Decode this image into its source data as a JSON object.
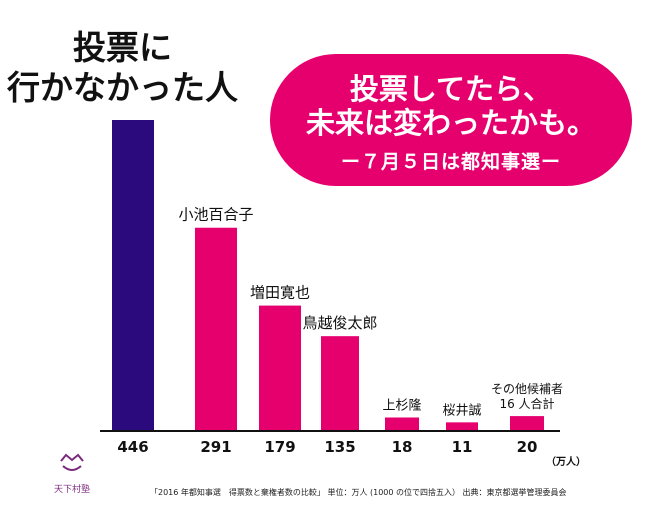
{
  "title_nonvoters": [
    "投票に",
    "行かなかった人"
  ],
  "callout": {
    "line1": "投票してたら、",
    "line2": "未来は変わったかも。",
    "line3": "ー７月５日は都知事選ー",
    "bg_color": "#e6006e"
  },
  "chart_data": {
    "type": "bar",
    "title": "2016年都知事選 得票数と棄権者数の比較",
    "unit_label": "（万人）",
    "categories": [
      "投票に行かなかった人",
      "小池百合子",
      "増田寛也",
      "鳥越俊太郎",
      "上杉隆",
      "桜井誠",
      "その他候補者16人合計"
    ],
    "bar_labels": [
      "",
      "小池百合子",
      "増田寛也",
      "鳥越俊太郎",
      "上杉隆",
      "桜井誠",
      [
        "その他候補者",
        "16 人合計"
      ]
    ],
    "values": [
      446,
      291,
      179,
      135,
      18,
      11,
      20
    ],
    "value_labels": [
      "446",
      "291",
      "179",
      "135",
      "18",
      "11",
      "20"
    ],
    "colors": [
      "#2a0a7c",
      "#e6006e",
      "#e6006e",
      "#e6006e",
      "#e6006e",
      "#e6006e",
      "#e6006e"
    ],
    "ylim": [
      0,
      446
    ],
    "grid": false
  },
  "footer": "「2016 年都知事選　得票数と棄権者数の比較」 単位：万人 (1000 の位で四捨五入） 出典：東京都選挙管理委員会",
  "logo": {
    "text": "天下村塾",
    "icon": "smile-crown-icon"
  }
}
